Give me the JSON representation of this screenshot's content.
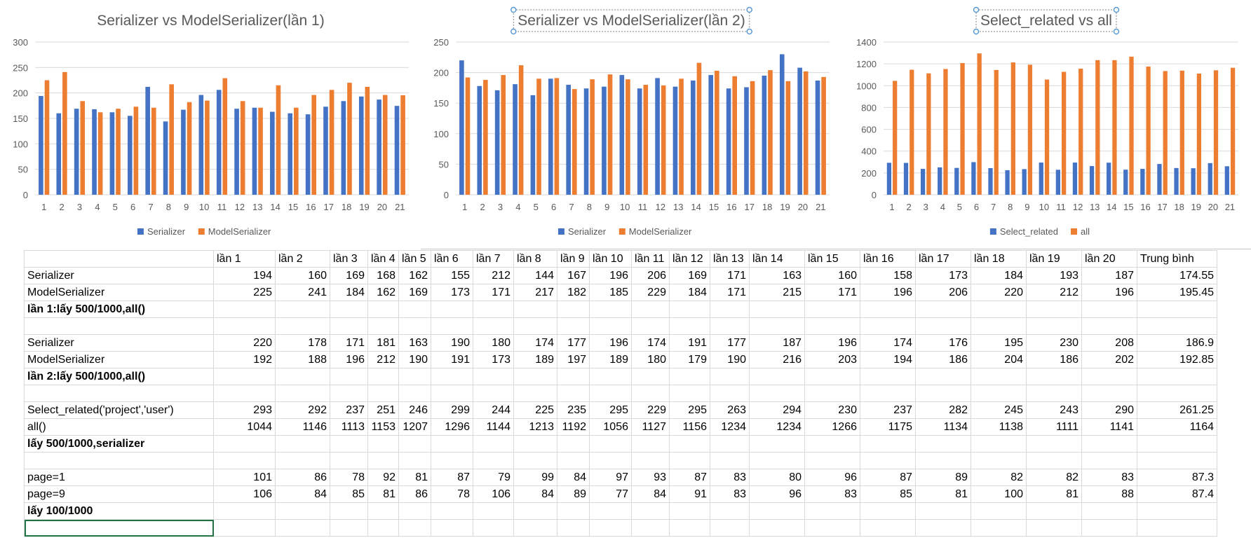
{
  "colors": {
    "blue": "#4472C4",
    "orange": "#ED7D31",
    "grid": "#d9d9d9",
    "axis_text": "#595959",
    "title_text": "#595959",
    "selection": "#217346",
    "handle": "#5b9bd5"
  },
  "charts": [
    {
      "title": "Serializer vs ModelSerializer(lần 1)",
      "title_selected": false,
      "ylim": [
        0,
        300
      ],
      "yticks": [
        0,
        50,
        100,
        150,
        200,
        250,
        300
      ],
      "categories": [
        "1",
        "2",
        "3",
        "4",
        "5",
        "6",
        "7",
        "8",
        "9",
        "10",
        "11",
        "12",
        "13",
        "14",
        "15",
        "16",
        "17",
        "18",
        "19",
        "20",
        "21"
      ],
      "series": [
        {
          "name": "Serializer",
          "color": "#4472C4",
          "values": [
            194,
            160,
            169,
            168,
            162,
            155,
            212,
            144,
            167,
            196,
            206,
            169,
            171,
            163,
            160,
            158,
            173,
            184,
            193,
            187,
            174.55
          ]
        },
        {
          "name": "ModelSerializer",
          "color": "#ED7D31",
          "values": [
            225,
            241,
            184,
            162,
            169,
            173,
            171,
            217,
            182,
            185,
            229,
            184,
            171,
            215,
            171,
            196,
            206,
            220,
            212,
            196,
            195.45
          ]
        }
      ]
    },
    {
      "title": "Serializer vs ModelSerializer(lần 2)",
      "title_selected": true,
      "ylim": [
        0,
        250
      ],
      "yticks": [
        0,
        50,
        100,
        150,
        200,
        250
      ],
      "categories": [
        "1",
        "2",
        "3",
        "4",
        "5",
        "6",
        "7",
        "8",
        "9",
        "10",
        "11",
        "12",
        "13",
        "14",
        "15",
        "16",
        "17",
        "18",
        "19",
        "20",
        "21"
      ],
      "series": [
        {
          "name": "Serializer",
          "color": "#4472C4",
          "values": [
            220,
            178,
            171,
            181,
            163,
            190,
            180,
            174,
            177,
            196,
            174,
            191,
            177,
            187,
            196,
            174,
            176,
            195,
            230,
            208,
            186.9
          ]
        },
        {
          "name": "ModelSerializer",
          "color": "#ED7D31",
          "values": [
            192,
            188,
            196,
            212,
            190,
            191,
            173,
            189,
            197,
            189,
            180,
            179,
            190,
            216,
            203,
            194,
            186,
            204,
            186,
            202,
            192.85
          ]
        }
      ]
    },
    {
      "title": "Select_related vs all",
      "title_selected": true,
      "ylim": [
        0,
        1400
      ],
      "yticks": [
        0,
        200,
        400,
        600,
        800,
        1000,
        1200,
        1400
      ],
      "categories": [
        "1",
        "2",
        "3",
        "4",
        "5",
        "6",
        "7",
        "8",
        "9",
        "10",
        "11",
        "12",
        "13",
        "14",
        "15",
        "16",
        "17",
        "18",
        "19",
        "20",
        "21"
      ],
      "series": [
        {
          "name": "Select_related",
          "color": "#4472C4",
          "values": [
            293,
            292,
            237,
            251,
            246,
            299,
            244,
            225,
            235,
            295,
            229,
            295,
            263,
            294,
            230,
            237,
            282,
            245,
            243,
            290,
            261.25
          ]
        },
        {
          "name": "all",
          "color": "#ED7D31",
          "values": [
            1044,
            1146,
            1113,
            1153,
            1207,
            1296,
            1144,
            1213,
            1192,
            1056,
            1127,
            1156,
            1234,
            1234,
            1266,
            1175,
            1134,
            1138,
            1111,
            1141,
            1164
          ]
        }
      ]
    }
  ],
  "sheet": {
    "header": [
      "",
      "lần 1",
      "lần 2",
      "lần 3",
      "lần 4",
      "lần 5",
      "lần 6",
      "lần 7",
      "lần 8",
      "lần 9",
      "lần 10",
      "lần 11",
      "lần 12",
      "lần 13",
      "lần 14",
      "lần 15",
      "lần 16",
      "lần 17",
      "lần 18",
      "lần 19",
      "lần 20",
      "Trung  bình"
    ],
    "rows": [
      {
        "label": "Serializer",
        "values": [
          "194",
          "160",
          "169",
          "168",
          "162",
          "155",
          "212",
          "144",
          "167",
          "196",
          "206",
          "169",
          "171",
          "163",
          "160",
          "158",
          "173",
          "184",
          "193",
          "187",
          "174.55"
        ]
      },
      {
        "label": "ModelSerializer",
        "values": [
          "225",
          "241",
          "184",
          "162",
          "169",
          "173",
          "171",
          "217",
          "182",
          "185",
          "229",
          "184",
          "171",
          "215",
          "171",
          "196",
          "206",
          "220",
          "212",
          "196",
          "195.45"
        ]
      },
      {
        "label": "lần 1:lấy 500/1000,all()",
        "bold": true,
        "values": []
      },
      {
        "label": "",
        "values": []
      },
      {
        "label": "Serializer",
        "values": [
          "220",
          "178",
          "171",
          "181",
          "163",
          "190",
          "180",
          "174",
          "177",
          "196",
          "174",
          "191",
          "177",
          "187",
          "196",
          "174",
          "176",
          "195",
          "230",
          "208",
          "186.9"
        ]
      },
      {
        "label": "ModelSerializer",
        "values": [
          "192",
          "188",
          "196",
          "212",
          "190",
          "191",
          "173",
          "189",
          "197",
          "189",
          "180",
          "179",
          "190",
          "216",
          "203",
          "194",
          "186",
          "204",
          "186",
          "202",
          "192.85"
        ]
      },
      {
        "label": "lần 2:lấy 500/1000,all()",
        "bold": true,
        "values": []
      },
      {
        "label": "",
        "values": []
      },
      {
        "label": "Select_related('project','user')",
        "values": [
          "293",
          "292",
          "237",
          "251",
          "246",
          "299",
          "244",
          "225",
          "235",
          "295",
          "229",
          "295",
          "263",
          "294",
          "230",
          "237",
          "282",
          "245",
          "243",
          "290",
          "261.25"
        ]
      },
      {
        "label": "all()",
        "values": [
          "1044",
          "1146",
          "1113",
          "1153",
          "1207",
          "1296",
          "1144",
          "1213",
          "1192",
          "1056",
          "1127",
          "1156",
          "1234",
          "1234",
          "1266",
          "1175",
          "1134",
          "1138",
          "1111",
          "1141",
          "1164"
        ]
      },
      {
        "label": "lấy 500/1000,serializer",
        "bold": true,
        "values": []
      },
      {
        "label": "",
        "values": []
      },
      {
        "label": "page=1",
        "values": [
          "101",
          "86",
          "78",
          "92",
          "81",
          "87",
          "79",
          "99",
          "84",
          "97",
          "93",
          "87",
          "83",
          "80",
          "96",
          "87",
          "89",
          "82",
          "82",
          "83",
          "87.3"
        ]
      },
      {
        "label": "page=9",
        "values": [
          "106",
          "84",
          "85",
          "81",
          "86",
          "78",
          "106",
          "84",
          "89",
          "77",
          "84",
          "91",
          "83",
          "96",
          "83",
          "85",
          "81",
          "100",
          "81",
          "88",
          "87.4"
        ]
      },
      {
        "label": "lấy 100/1000",
        "bold": true,
        "values": []
      },
      {
        "label": "",
        "values": [],
        "selected": true
      }
    ]
  }
}
